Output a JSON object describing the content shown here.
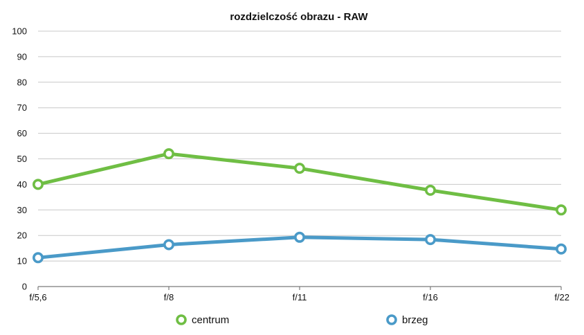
{
  "chart_data": {
    "type": "line",
    "title": "rozdzielczość obrazu - RAW",
    "xlabel": "",
    "ylabel": "",
    "categories": [
      "f/5,6",
      "f/8",
      "f/11",
      "f/16",
      "f/22"
    ],
    "ylim": [
      0,
      100
    ],
    "yticks": [
      "0",
      "10",
      "20",
      "30",
      "40",
      "50",
      "60",
      "70",
      "80",
      "90",
      "100"
    ],
    "grid": true,
    "legend_position": "bottom",
    "series": [
      {
        "name": "centrum",
        "values": [
          40,
          52,
          46.3,
          37.7,
          30
        ],
        "color": "#6fbe44"
      },
      {
        "name": "brzeg",
        "values": [
          11.3,
          16.4,
          19.3,
          18.4,
          14.7
        ],
        "color": "#4a9ac8"
      }
    ]
  }
}
